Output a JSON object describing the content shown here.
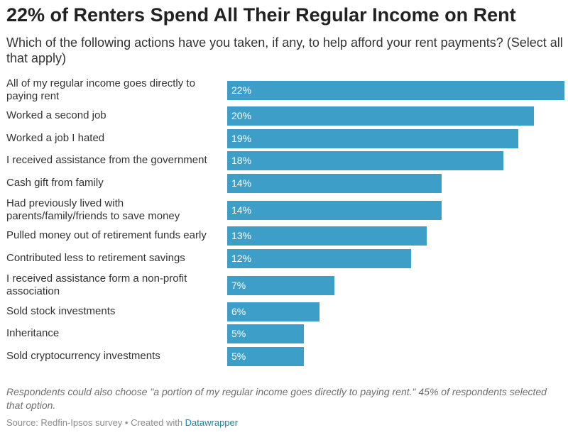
{
  "title": "22% of Renters Spend All Their Regular Income on Rent",
  "subtitle": "Which of the following actions have you taken, if any, to help afford your rent payments? (Select all that apply)",
  "note": "Respondents could also choose \"a portion of my regular income goes directly to paying rent.\" 45% of respondents selected that option.",
  "footer": {
    "source_text": "Source: Redfin-Ipsos survey",
    "separator": " • ",
    "created_text": "Created with ",
    "link_text": "Datawrapper"
  },
  "colors": {
    "bar": "#3d9ec8",
    "link": "#1d81a2"
  },
  "chart_data": {
    "type": "bar",
    "orientation": "horizontal",
    "value_suffix": "%",
    "categories": [
      "All of my regular income goes directly to paying rent",
      "Worked a second job",
      "Worked a job I hated",
      "I received assistance from the government",
      "Cash gift from family",
      "Had previously lived with parents/family/friends to save money",
      "Pulled money out of retirement funds early",
      "Contributed less to retirement savings",
      "I received assistance form a non-profit association",
      "Sold stock investments",
      "Inheritance",
      "Sold cryptocurrency investments"
    ],
    "values": [
      22,
      20,
      19,
      18,
      14,
      14,
      13,
      12,
      7,
      6,
      5,
      5
    ],
    "data_labels": [
      "22%",
      "20%",
      "19%",
      "18%",
      "14%",
      "14%",
      "13%",
      "12%",
      "7%",
      "6%",
      "5%",
      "5%"
    ],
    "title": "22% of Renters Spend All Their Regular Income on Rent",
    "xlabel": "",
    "ylabel": "",
    "grid": false
  }
}
